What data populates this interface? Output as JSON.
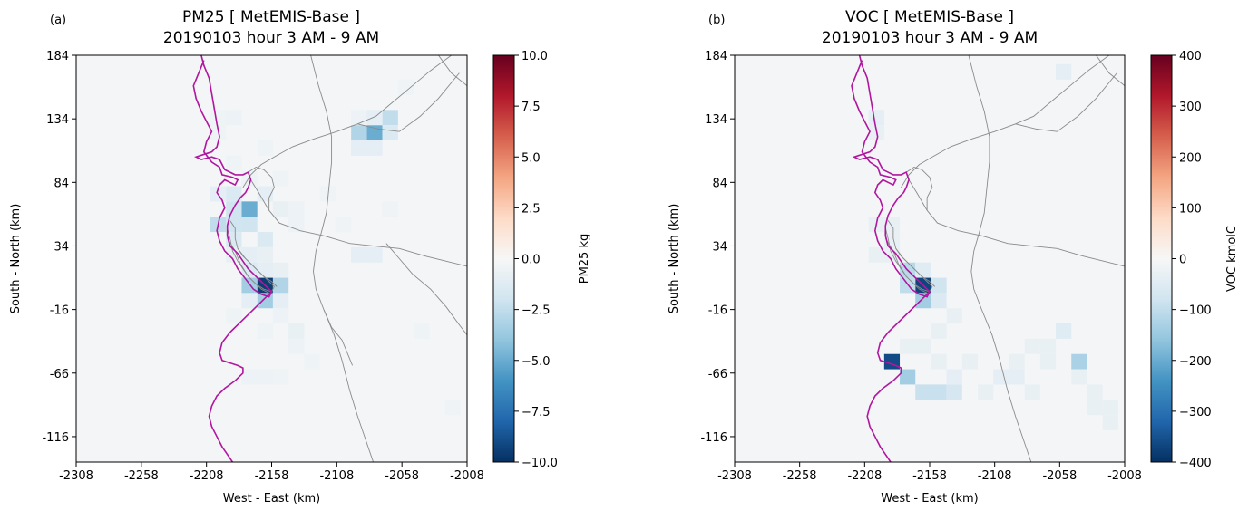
{
  "chart_data": [
    {
      "type": "heatmap",
      "panel_label": "(a)",
      "title_line1": "PM25 [ MetEMIS-Base ]",
      "title_line2": "20190103 hour 3 AM - 9 AM",
      "xlabel": "West - East (km)",
      "ylabel": "South - North (km)",
      "xlim": [
        -2308,
        -2008
      ],
      "ylim": [
        -136,
        184
      ],
      "xticks": [
        -2308,
        -2258,
        -2208,
        -2158,
        -2108,
        -2058,
        -2008
      ],
      "yticks": [
        184,
        134,
        84,
        34,
        -16,
        -66,
        -116
      ],
      "cell_size_km": 12,
      "colorbar": {
        "label": "PM25 kg",
        "vmin": -10.0,
        "vmax": 10.0,
        "ticks": [
          10.0,
          7.5,
          5.0,
          2.5,
          0.0,
          -2.5,
          -5.0,
          -7.5,
          -10.0
        ],
        "tick_labels": [
          "10.0",
          "7.5",
          "5.0",
          "2.5",
          "0.0",
          "−2.5",
          "−5.0",
          "−7.5",
          "−10.0"
        ],
        "colormap": "RdBu_r"
      },
      "cells": [
        {
          "x": -2163,
          "y": 3,
          "v": -9.5
        },
        {
          "x": -2151,
          "y": 3,
          "v": -3.0
        },
        {
          "x": -2175,
          "y": 3,
          "v": -3.5
        },
        {
          "x": -2163,
          "y": -9,
          "v": -3.5
        },
        {
          "x": -2175,
          "y": -9,
          "v": -1.0
        },
        {
          "x": -2151,
          "y": -9,
          "v": -1.0
        },
        {
          "x": -2175,
          "y": 63,
          "v": -5.0
        },
        {
          "x": -2187,
          "y": 63,
          "v": -2.0
        },
        {
          "x": -2199,
          "y": 51,
          "v": -2.5
        },
        {
          "x": -2187,
          "y": 51,
          "v": -2.0
        },
        {
          "x": -2175,
          "y": 51,
          "v": -2.0
        },
        {
          "x": -2187,
          "y": 75,
          "v": -1.5
        },
        {
          "x": -2199,
          "y": 75,
          "v": -1.0
        },
        {
          "x": -2163,
          "y": 75,
          "v": -1.0
        },
        {
          "x": -2151,
          "y": 63,
          "v": -0.8
        },
        {
          "x": -2163,
          "y": 39,
          "v": -1.5
        },
        {
          "x": -2187,
          "y": 39,
          "v": -1.5
        },
        {
          "x": -2175,
          "y": 27,
          "v": -1.0
        },
        {
          "x": -2187,
          "y": 27,
          "v": -0.8
        },
        {
          "x": -2163,
          "y": 27,
          "v": -0.8
        },
        {
          "x": -2163,
          "y": 15,
          "v": -1.0
        },
        {
          "x": -2175,
          "y": 15,
          "v": -1.5
        },
        {
          "x": -2151,
          "y": 15,
          "v": -0.8
        },
        {
          "x": -2139,
          "y": 63,
          "v": -0.6
        },
        {
          "x": -2139,
          "y": 51,
          "v": -0.6
        },
        {
          "x": -2151,
          "y": 87,
          "v": -0.5
        },
        {
          "x": -2175,
          "y": 87,
          "v": -0.6
        },
        {
          "x": -2187,
          "y": 99,
          "v": -0.5
        },
        {
          "x": -2163,
          "y": 111,
          "v": -0.5
        },
        {
          "x": -2199,
          "y": 135,
          "v": -0.5
        },
        {
          "x": -2187,
          "y": 135,
          "v": -0.6
        },
        {
          "x": -2199,
          "y": 123,
          "v": -0.5
        },
        {
          "x": -2079,
          "y": 123,
          "v": -5.0
        },
        {
          "x": -2091,
          "y": 123,
          "v": -3.0
        },
        {
          "x": -2067,
          "y": 135,
          "v": -2.5
        },
        {
          "x": -2067,
          "y": 123,
          "v": -1.5
        },
        {
          "x": -2079,
          "y": 135,
          "v": -1.0
        },
        {
          "x": -2091,
          "y": 111,
          "v": -1.0
        },
        {
          "x": -2079,
          "y": 111,
          "v": -1.0
        },
        {
          "x": -2091,
          "y": 135,
          "v": -0.6
        },
        {
          "x": -2091,
          "y": 27,
          "v": -1.0
        },
        {
          "x": -2079,
          "y": 27,
          "v": -1.0
        },
        {
          "x": -2151,
          "y": -21,
          "v": -0.6
        },
        {
          "x": -2139,
          "y": -33,
          "v": -0.8
        },
        {
          "x": -2139,
          "y": -45,
          "v": -0.6
        },
        {
          "x": -2163,
          "y": -33,
          "v": -0.5
        },
        {
          "x": -2175,
          "y": -69,
          "v": -0.6
        },
        {
          "x": -2163,
          "y": -69,
          "v": -0.6
        },
        {
          "x": -2151,
          "y": -69,
          "v": -0.5
        },
        {
          "x": -2187,
          "y": -21,
          "v": -0.5
        },
        {
          "x": -2127,
          "y": -57,
          "v": -0.5
        },
        {
          "x": -2043,
          "y": -33,
          "v": -0.5
        },
        {
          "x": -2067,
          "y": 63,
          "v": -0.4
        },
        {
          "x": -2103,
          "y": 51,
          "v": -0.4
        },
        {
          "x": -2115,
          "y": 75,
          "v": -0.4
        },
        {
          "x": -2019,
          "y": -93,
          "v": -0.4
        },
        {
          "x": -2055,
          "y": 159,
          "v": -0.4
        }
      ]
    },
    {
      "type": "heatmap",
      "panel_label": "(b)",
      "title_line1": "VOC [ MetEMIS-Base ]",
      "title_line2": "20190103 hour 3 AM - 9 AM",
      "xlabel": "West - East (km)",
      "ylabel": "South - North (km)",
      "xlim": [
        -2308,
        -2008
      ],
      "ylim": [
        -136,
        184
      ],
      "xticks": [
        -2308,
        -2258,
        -2208,
        -2158,
        -2108,
        -2058,
        -2008
      ],
      "yticks": [
        184,
        134,
        84,
        34,
        -16,
        -66,
        -116
      ],
      "cell_size_km": 12,
      "colorbar": {
        "label": "VOC kmolC",
        "vmin": -400,
        "vmax": 400,
        "ticks": [
          400,
          300,
          200,
          100,
          0,
          -100,
          -200,
          -300,
          -400
        ],
        "tick_labels": [
          "400",
          "300",
          "200",
          "100",
          "0",
          "−100",
          "−200",
          "−300",
          "−400"
        ],
        "colormap": "RdBu_r"
      },
      "cells": [
        {
          "x": -2163,
          "y": 3,
          "v": -370
        },
        {
          "x": -2175,
          "y": 3,
          "v": -100
        },
        {
          "x": -2151,
          "y": 3,
          "v": -80
        },
        {
          "x": -2163,
          "y": -9,
          "v": -140
        },
        {
          "x": -2151,
          "y": -9,
          "v": -60
        },
        {
          "x": -2175,
          "y": 15,
          "v": -110
        },
        {
          "x": -2163,
          "y": 15,
          "v": -50
        },
        {
          "x": -2187,
          "y": -57,
          "v": -360
        },
        {
          "x": -2175,
          "y": -69,
          "v": -140
        },
        {
          "x": -2163,
          "y": -81,
          "v": -90
        },
        {
          "x": -2151,
          "y": -81,
          "v": -90
        },
        {
          "x": -2139,
          "y": -81,
          "v": -70
        },
        {
          "x": -2139,
          "y": -69,
          "v": -40
        },
        {
          "x": -2043,
          "y": -57,
          "v": -130
        },
        {
          "x": -2055,
          "y": -33,
          "v": -50
        },
        {
          "x": -2079,
          "y": -45,
          "v": -30
        },
        {
          "x": -2067,
          "y": -57,
          "v": -30
        },
        {
          "x": -2103,
          "y": -69,
          "v": -40
        },
        {
          "x": -2091,
          "y": -69,
          "v": -40
        },
        {
          "x": -2079,
          "y": -81,
          "v": -30
        },
        {
          "x": -2115,
          "y": -81,
          "v": -30
        },
        {
          "x": -2031,
          "y": -81,
          "v": -30
        },
        {
          "x": -2019,
          "y": -93,
          "v": -30
        },
        {
          "x": -2127,
          "y": -57,
          "v": -30
        },
        {
          "x": -2139,
          "y": -21,
          "v": -30
        },
        {
          "x": -2151,
          "y": -33,
          "v": -30
        },
        {
          "x": -2187,
          "y": 51,
          "v": -30
        },
        {
          "x": -2199,
          "y": 51,
          "v": -30
        },
        {
          "x": -2187,
          "y": 39,
          "v": -30
        },
        {
          "x": -2199,
          "y": 27,
          "v": -30
        },
        {
          "x": -2187,
          "y": 27,
          "v": -30
        },
        {
          "x": -2199,
          "y": 135,
          "v": -40
        },
        {
          "x": -2199,
          "y": 123,
          "v": -30
        },
        {
          "x": -2055,
          "y": 171,
          "v": -40
        },
        {
          "x": -2163,
          "y": -45,
          "v": -30
        },
        {
          "x": -2151,
          "y": -57,
          "v": -30
        },
        {
          "x": -2175,
          "y": -45,
          "v": -30
        },
        {
          "x": -2091,
          "y": -57,
          "v": -30
        },
        {
          "x": -2043,
          "y": -69,
          "v": -30
        },
        {
          "x": -2019,
          "y": -105,
          "v": -30
        },
        {
          "x": -2031,
          "y": -93,
          "v": -30
        },
        {
          "x": -2067,
          "y": -45,
          "v": -30
        }
      ]
    }
  ]
}
